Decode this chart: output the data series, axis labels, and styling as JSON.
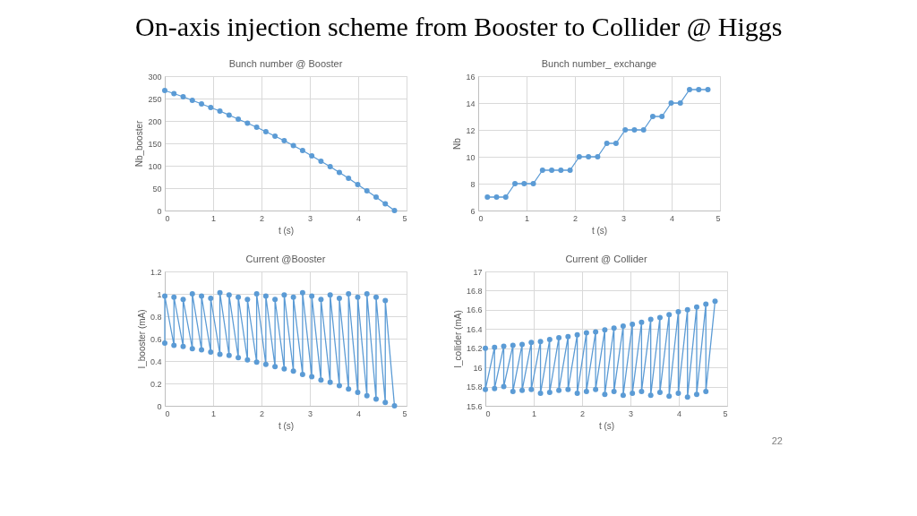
{
  "chart_data": [
    {
      "type": "other",
      "title": "On-axis injection scheme from Booster to Collider @ Higgs",
      "annotations": [
        "22"
      ]
    },
    {
      "type": "line",
      "title": "Bunch number @ Booster",
      "xlabel": "t (s)",
      "ylabel": "Nb_booster",
      "x": [
        0,
        0.19,
        0.38,
        0.57,
        0.76,
        0.95,
        1.14,
        1.33,
        1.52,
        1.71,
        1.9,
        2.09,
        2.28,
        2.47,
        2.66,
        2.85,
        3.04,
        3.23,
        3.42,
        3.61,
        3.8,
        3.99,
        4.18,
        4.37,
        4.56,
        4.75
      ],
      "series": [
        {
          "color": "#5b9bd5",
          "values": [
            268,
            261,
            254,
            246,
            238,
            230,
            222,
            213,
            204,
            195,
            186,
            176,
            166,
            156,
            145,
            134,
            122,
            110,
            98,
            85,
            72,
            58,
            44,
            30,
            15,
            0
          ]
        }
      ],
      "xlim": [
        0,
        5
      ],
      "xticks": [
        0,
        1,
        2,
        3,
        4,
        5
      ],
      "ylim": [
        0,
        300
      ],
      "yticks": [
        0,
        50,
        100,
        150,
        200,
        250,
        300
      ],
      "grid": true,
      "marker": "circle"
    },
    {
      "type": "line",
      "title": "Bunch number_ exchange",
      "xlabel": "t (s)",
      "ylabel": "Nb",
      "x": [
        0.19,
        0.38,
        0.57,
        0.76,
        0.95,
        1.14,
        1.33,
        1.52,
        1.71,
        1.9,
        2.09,
        2.28,
        2.47,
        2.66,
        2.85,
        3.04,
        3.23,
        3.42,
        3.61,
        3.8,
        3.99,
        4.18,
        4.37,
        4.56,
        4.75
      ],
      "series": [
        {
          "color": "#5b9bd5",
          "values": [
            7,
            7,
            7,
            8,
            8,
            8,
            9,
            9,
            9,
            9,
            10,
            10,
            10,
            11,
            11,
            12,
            12,
            12,
            13,
            13,
            14,
            14,
            15,
            15,
            15
          ]
        }
      ],
      "xlim": [
        0,
        5
      ],
      "xticks": [
        0,
        1,
        2,
        3,
        4,
        5
      ],
      "ylim": [
        6,
        16
      ],
      "yticks": [
        6,
        8,
        10,
        12,
        14,
        16
      ],
      "grid": true,
      "marker": "circle"
    },
    {
      "type": "line",
      "title": "Current @Booster",
      "xlabel": "t (s)",
      "ylabel": "I_booster (mA)",
      "x": [
        0,
        0,
        0.19,
        0.19,
        0.38,
        0.38,
        0.57,
        0.57,
        0.76,
        0.76,
        0.95,
        0.95,
        1.14,
        1.14,
        1.33,
        1.33,
        1.52,
        1.52,
        1.71,
        1.71,
        1.9,
        1.9,
        2.09,
        2.09,
        2.28,
        2.28,
        2.47,
        2.47,
        2.66,
        2.66,
        2.85,
        2.85,
        3.04,
        3.04,
        3.23,
        3.23,
        3.42,
        3.42,
        3.61,
        3.61,
        3.8,
        3.8,
        3.99,
        3.99,
        4.18,
        4.18,
        4.37,
        4.37,
        4.56,
        4.56,
        4.75
      ],
      "series": [
        {
          "color": "#5b9bd5",
          "values": [
            0.56,
            0.98,
            0.54,
            0.97,
            0.53,
            0.95,
            0.51,
            1.0,
            0.5,
            0.98,
            0.48,
            0.96,
            0.46,
            1.01,
            0.45,
            0.99,
            0.43,
            0.97,
            0.41,
            0.95,
            0.39,
            1.0,
            0.37,
            0.98,
            0.35,
            0.95,
            0.33,
            0.99,
            0.31,
            0.97,
            0.28,
            1.01,
            0.26,
            0.98,
            0.23,
            0.95,
            0.21,
            0.99,
            0.18,
            0.96,
            0.15,
            1.0,
            0.12,
            0.97,
            0.09,
            1.0,
            0.06,
            0.97,
            0.03,
            0.94,
            0
          ]
        }
      ],
      "xlim": [
        0,
        5
      ],
      "xticks": [
        0,
        1,
        2,
        3,
        4,
        5
      ],
      "ylim": [
        0,
        1.2
      ],
      "yticks": [
        0,
        0.2,
        0.4,
        0.6,
        0.8,
        1,
        1.2
      ],
      "grid": true,
      "marker": "circle"
    },
    {
      "type": "line",
      "title": "Current @ Collider",
      "xlabel": "t (s)",
      "ylabel": "I_collider (mA)",
      "x": [
        0,
        0,
        0.19,
        0.19,
        0.38,
        0.38,
        0.57,
        0.57,
        0.76,
        0.76,
        0.95,
        0.95,
        1.14,
        1.14,
        1.33,
        1.33,
        1.52,
        1.52,
        1.71,
        1.71,
        1.9,
        1.9,
        2.09,
        2.09,
        2.28,
        2.28,
        2.47,
        2.47,
        2.66,
        2.66,
        2.85,
        2.85,
        3.04,
        3.04,
        3.23,
        3.23,
        3.42,
        3.42,
        3.61,
        3.61,
        3.8,
        3.8,
        3.99,
        3.99,
        4.18,
        4.18,
        4.37,
        4.37,
        4.56,
        4.56,
        4.75
      ],
      "series": [
        {
          "color": "#5b9bd5",
          "values": [
            16.2,
            15.77,
            16.21,
            15.78,
            16.22,
            15.8,
            16.23,
            15.75,
            16.24,
            15.76,
            16.26,
            15.77,
            16.27,
            15.73,
            16.29,
            15.74,
            16.31,
            15.76,
            16.32,
            15.77,
            16.34,
            15.73,
            16.36,
            15.75,
            16.37,
            15.77,
            16.39,
            15.72,
            16.41,
            15.75,
            16.43,
            15.71,
            16.45,
            15.73,
            16.47,
            15.75,
            16.5,
            15.71,
            16.52,
            15.74,
            16.55,
            15.7,
            16.58,
            15.73,
            16.6,
            15.69,
            16.63,
            15.72,
            16.66,
            15.75,
            16.69
          ]
        }
      ],
      "xlim": [
        0,
        5
      ],
      "xticks": [
        0,
        1,
        2,
        3,
        4,
        5
      ],
      "ylim": [
        15.6,
        17
      ],
      "yticks": [
        15.6,
        15.8,
        16,
        16.2,
        16.4,
        16.6,
        16.8,
        17
      ],
      "grid": true,
      "marker": "circle"
    }
  ]
}
